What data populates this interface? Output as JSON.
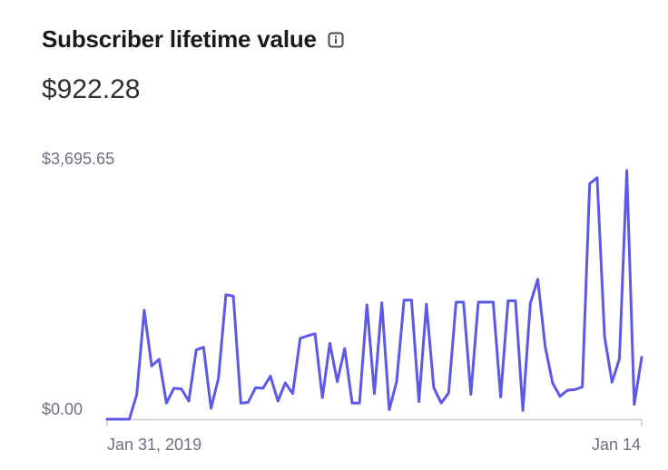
{
  "card": {
    "title": "Subscriber lifetime value",
    "info_icon": "info-icon",
    "metric_value": "$922.28"
  },
  "colors": {
    "line": "#5c59e8",
    "axis": "#c9cbd4",
    "tick_text": "#6d7083"
  },
  "chart_data": {
    "type": "line",
    "title": "Subscriber lifetime value",
    "xlabel": "",
    "ylabel": "",
    "y_tick_labels": [
      "$0.00",
      "$3,695.65"
    ],
    "x_tick_labels": [
      "Jan 31, 2019",
      "Jan 14"
    ],
    "ylim": [
      0,
      3695.65
    ],
    "grid": false,
    "legend": "none",
    "series": [
      {
        "values": [
          0,
          0,
          0,
          0,
          370,
          1620,
          790,
          890,
          240,
          460,
          450,
          270,
          1030,
          1070,
          160,
          610,
          1850,
          1830,
          240,
          250,
          470,
          460,
          640,
          270,
          540,
          380,
          1200,
          1240,
          1270,
          320,
          1130,
          560,
          1050,
          240,
          240,
          1700,
          380,
          1730,
          140,
          560,
          1770,
          1770,
          260,
          1710,
          470,
          240,
          390,
          1740,
          1740,
          370,
          1740,
          1740,
          1740,
          330,
          1760,
          1760,
          130,
          1720,
          2080,
          1080,
          540,
          340,
          430,
          440,
          480,
          3500,
          3590,
          1230,
          550,
          900,
          3695.65,
          220,
          920
        ]
      }
    ]
  }
}
